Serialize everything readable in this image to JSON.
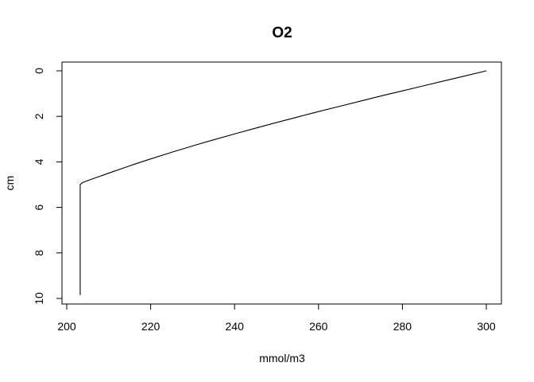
{
  "chart_data": {
    "type": "line",
    "title": "O2",
    "xlabel": "mmol/m3",
    "ylabel": "cm",
    "xlim": [
      200,
      300
    ],
    "ylim": [
      10,
      0
    ],
    "y_reversed": true,
    "x_ticks": [
      200,
      220,
      240,
      260,
      280,
      300
    ],
    "y_ticks": [
      0,
      2,
      4,
      6,
      8,
      10
    ],
    "grid": false,
    "legend": "none",
    "series": [
      {
        "name": "O2",
        "color": "#000000",
        "x": [
          300,
          295,
          290,
          285,
          280,
          275,
          270,
          265,
          260,
          255,
          250,
          245,
          240,
          235,
          230,
          225,
          220,
          217,
          214,
          211,
          209,
          207,
          205.5,
          204.3,
          203.6,
          203.2,
          203.2,
          203.2
        ],
        "y": [
          0,
          0.22,
          0.44,
          0.66,
          0.88,
          1.1,
          1.33,
          1.56,
          1.79,
          2.03,
          2.27,
          2.52,
          2.77,
          3.03,
          3.3,
          3.58,
          3.87,
          4.05,
          4.24,
          4.43,
          4.56,
          4.69,
          4.79,
          4.87,
          4.93,
          5.0,
          7.5,
          9.85
        ]
      }
    ]
  }
}
